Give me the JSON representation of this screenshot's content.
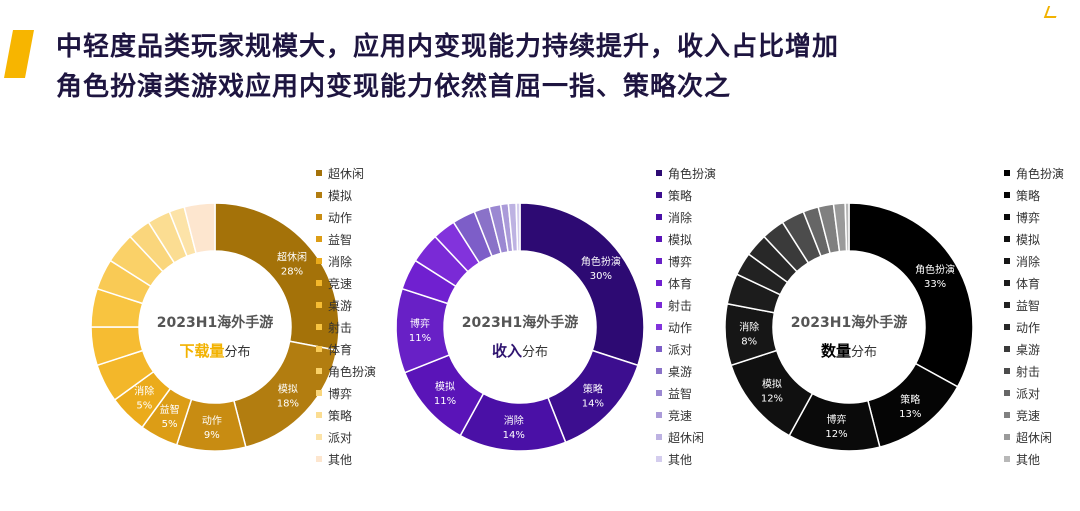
{
  "header": {
    "title_line1": "中轻度品类玩家规模大，应用内变现能力持续提升，收入占比增加",
    "title_line2": "角色扮演类游戏应用内变现能力依然首屈一指、策略次之"
  },
  "chart_data": [
    {
      "type": "pie",
      "style": "donut",
      "center_title": "2023H1海外手游",
      "center_highlight": "下载量",
      "center_suffix": "分布",
      "highlight_color": "#f2b200",
      "categories": [
        "超休闲",
        "模拟",
        "动作",
        "益智",
        "消除",
        "竞速",
        "桌游",
        "射击",
        "体育",
        "角色扮演",
        "博弈",
        "策略",
        "派对",
        "其他"
      ],
      "values": [
        28,
        18,
        9,
        5,
        5,
        5,
        5,
        5,
        4,
        4,
        3,
        3,
        2,
        4
      ],
      "data_labels": [
        "28%",
        "18%",
        "9%",
        "5%",
        "5%",
        "",
        "",
        "",
        "",
        "",
        "",
        "",
        "",
        ""
      ],
      "colors": [
        "#a47209",
        "#b27d10",
        "#c88c12",
        "#dc9d16",
        "#ebab1b",
        "#f3b72a",
        "#f6bc32",
        "#f8c440",
        "#f9ca55",
        "#fad168",
        "#fad67c",
        "#fbdd92",
        "#fce3a8",
        "#fde6cf"
      ],
      "label_colors": [
        "#ffffff",
        "#ffffff",
        "#ffffff",
        "#ffffff",
        "#ffffff",
        "#ffffff",
        "#ffffff",
        "#ffffff",
        "#ffffff",
        "#ffffff",
        "#ffffff",
        "#ffffff",
        "#ffffff",
        "#ffffff"
      ],
      "legend_position": "right"
    },
    {
      "type": "pie",
      "style": "donut",
      "center_title": "2023H1海外手游",
      "center_highlight": "收入",
      "center_suffix": "分布",
      "highlight_color": "#2f1470",
      "categories": [
        "角色扮演",
        "策略",
        "消除",
        "模拟",
        "博弈",
        "体育",
        "射击",
        "动作",
        "派对",
        "桌游",
        "益智",
        "竞速",
        "超休闲",
        "其他"
      ],
      "values": [
        30,
        14,
        14,
        11,
        11,
        4,
        4,
        3,
        3,
        2,
        1.5,
        1,
        1,
        0.5
      ],
      "data_labels": [
        "30%",
        "14%",
        "14%",
        "11%",
        "11%",
        "",
        "",
        "",
        "",
        "",
        "",
        "",
        "",
        ""
      ],
      "colors": [
        "#2d0a73",
        "#3c0e8f",
        "#4a10a6",
        "#5a14b8",
        "#6820c6",
        "#7020d0",
        "#7a2ad6",
        "#8233dc",
        "#7d5ec8",
        "#8a72c8",
        "#9b88d2",
        "#ab9bd9",
        "#bdb2e2",
        "#d4cdee"
      ],
      "label_colors": [
        "#ffffff",
        "#ffffff",
        "#ffffff",
        "#ffffff",
        "#ffffff",
        "#ffffff",
        "#ffffff",
        "#ffffff",
        "#ffffff",
        "#ffffff",
        "#ffffff",
        "#ffffff",
        "#ffffff",
        "#ffffff"
      ],
      "legend_position": "right"
    },
    {
      "type": "pie",
      "style": "donut",
      "center_title": "2023H1海外手游",
      "center_highlight": "数量",
      "center_suffix": "分布",
      "highlight_color": "#000000",
      "categories": [
        "角色扮演",
        "策略",
        "博弈",
        "模拟",
        "消除",
        "体育",
        "益智",
        "动作",
        "桌游",
        "射击",
        "派对",
        "竞速",
        "超休闲",
        "其他"
      ],
      "values": [
        33,
        13,
        12,
        12,
        8,
        4,
        3,
        3,
        3,
        3,
        2,
        2,
        1.5,
        0.5
      ],
      "data_labels": [
        "33%",
        "13%",
        "12%",
        "12%",
        "8%",
        "",
        "",
        "",
        "",
        "",
        "",
        "",
        "",
        ""
      ],
      "colors": [
        "#000000",
        "#050505",
        "#0a0a0a",
        "#101010",
        "#161616",
        "#1c1c1c",
        "#222222",
        "#282828",
        "#3a3a3a",
        "#4c4c4c",
        "#666666",
        "#808080",
        "#9a9a9a",
        "#b8b8b8"
      ],
      "label_colors": [
        "#ffffff",
        "#ffffff",
        "#ffffff",
        "#ffffff",
        "#ffffff",
        "#ffffff",
        "#ffffff",
        "#ffffff",
        "#ffffff",
        "#ffffff",
        "#ffffff",
        "#ffffff",
        "#ffffff",
        "#ffffff"
      ],
      "legend_position": "right"
    }
  ]
}
